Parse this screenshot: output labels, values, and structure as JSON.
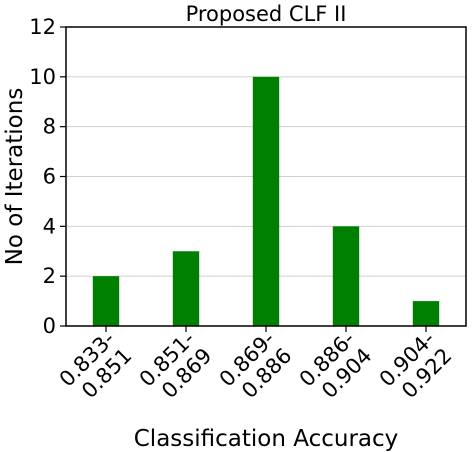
{
  "chart_data": {
    "type": "bar",
    "title": "Proposed CLF II",
    "xlabel": "Classification Accuracy",
    "ylabel": "No of Iterations",
    "categories": [
      [
        "0.833-",
        "0.851"
      ],
      [
        "0.851-",
        "0.869"
      ],
      [
        "0.869-",
        "0.886"
      ],
      [
        "0.886-",
        "0.904"
      ],
      [
        "0.904-",
        "0.922"
      ]
    ],
    "values": [
      2,
      3,
      10,
      4,
      1
    ],
    "ylim": [
      0,
      12
    ],
    "yticks": [
      0,
      2,
      4,
      6,
      8,
      10,
      12
    ],
    "grid": "y",
    "bar_color": "#008000",
    "grid_color": "#d0d0d0"
  }
}
